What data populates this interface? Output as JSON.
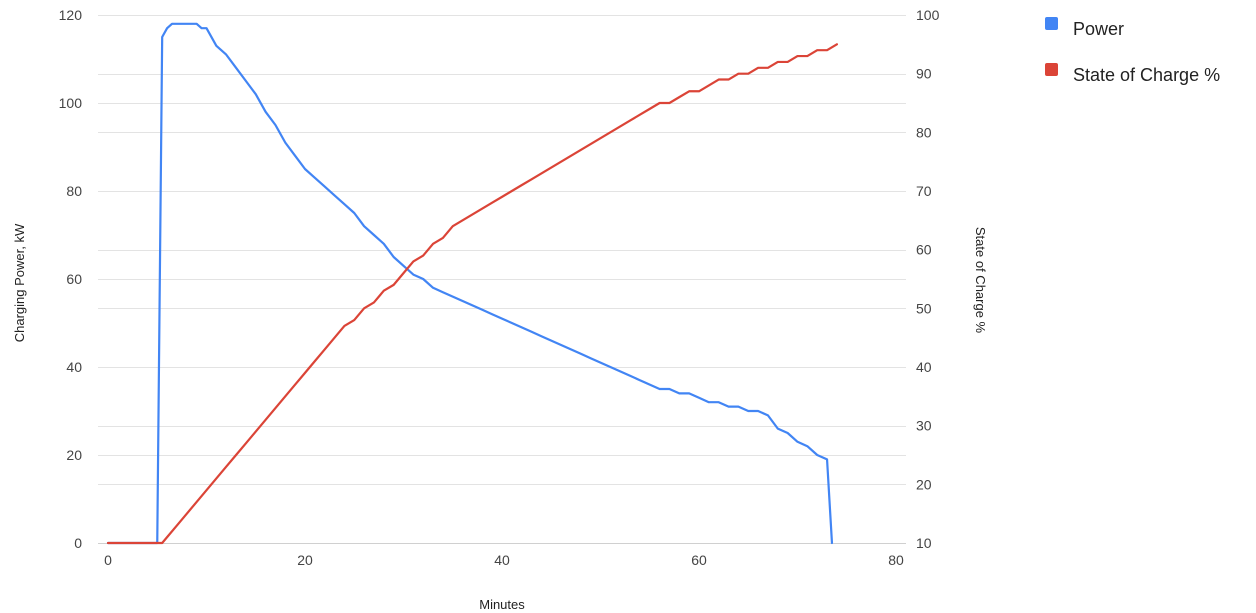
{
  "chart_data": {
    "type": "line",
    "title": "",
    "xlabel": "Minutes",
    "ylabel_left": "Charging Power, kW",
    "ylabel_right": "State of Charge %",
    "xlim": [
      0,
      80
    ],
    "ylim_left": [
      0,
      120
    ],
    "ylim_right": [
      10,
      100
    ],
    "x_ticks": [
      "0",
      "20",
      "40",
      "60",
      "80"
    ],
    "y_ticks_left": [
      "0",
      "20",
      "40",
      "60",
      "80",
      "100",
      "120"
    ],
    "y_ticks_right": [
      "10",
      "20",
      "30",
      "40",
      "50",
      "60",
      "70",
      "80",
      "90",
      "100"
    ],
    "grid": true,
    "legend_position": "right",
    "series": [
      {
        "name": "Power",
        "axis": "left",
        "color": "#4285f4",
        "points": [
          [
            0,
            0
          ],
          [
            5,
            0
          ],
          [
            5.5,
            115
          ],
          [
            6,
            117
          ],
          [
            6.5,
            118
          ],
          [
            8,
            118
          ],
          [
            9,
            118
          ],
          [
            9.5,
            117
          ],
          [
            10,
            117
          ],
          [
            11,
            113
          ],
          [
            12,
            111
          ],
          [
            13,
            108
          ],
          [
            14,
            105
          ],
          [
            15,
            102
          ],
          [
            16,
            98
          ],
          [
            17,
            95
          ],
          [
            18,
            91
          ],
          [
            19,
            88
          ],
          [
            20,
            85
          ],
          [
            21,
            83
          ],
          [
            22,
            81
          ],
          [
            23,
            79
          ],
          [
            24,
            77
          ],
          [
            25,
            75
          ],
          [
            26,
            72
          ],
          [
            27,
            70
          ],
          [
            28,
            68
          ],
          [
            29,
            65
          ],
          [
            30,
            63
          ],
          [
            31,
            61
          ],
          [
            32,
            60
          ],
          [
            33,
            58
          ],
          [
            34,
            57
          ],
          [
            35,
            56
          ],
          [
            36,
            55
          ],
          [
            37,
            54
          ],
          [
            38,
            53
          ],
          [
            39,
            52
          ],
          [
            40,
            51
          ],
          [
            41,
            50
          ],
          [
            42,
            49
          ],
          [
            43,
            48
          ],
          [
            44,
            47
          ],
          [
            45,
            46
          ],
          [
            46,
            45
          ],
          [
            47,
            44
          ],
          [
            48,
            43
          ],
          [
            49,
            42
          ],
          [
            50,
            41
          ],
          [
            51,
            40
          ],
          [
            52,
            39
          ],
          [
            53,
            38
          ],
          [
            54,
            37
          ],
          [
            55,
            36
          ],
          [
            56,
            35
          ],
          [
            57,
            35
          ],
          [
            58,
            34
          ],
          [
            59,
            34
          ],
          [
            60,
            33
          ],
          [
            61,
            32
          ],
          [
            62,
            32
          ],
          [
            63,
            31
          ],
          [
            64,
            31
          ],
          [
            65,
            30
          ],
          [
            66,
            30
          ],
          [
            67,
            29
          ],
          [
            68,
            26
          ],
          [
            69,
            25
          ],
          [
            70,
            23
          ],
          [
            71,
            22
          ],
          [
            72,
            20
          ],
          [
            73,
            19
          ],
          [
            73.5,
            0
          ]
        ]
      },
      {
        "name": "State of Charge %",
        "axis": "right",
        "color": "#db4437",
        "points": [
          [
            0,
            10
          ],
          [
            5.5,
            10
          ],
          [
            6,
            11
          ],
          [
            7,
            13
          ],
          [
            8,
            15
          ],
          [
            9,
            17
          ],
          [
            10,
            19
          ],
          [
            11,
            21
          ],
          [
            12,
            23
          ],
          [
            13,
            25
          ],
          [
            14,
            27
          ],
          [
            15,
            29
          ],
          [
            16,
            31
          ],
          [
            17,
            33
          ],
          [
            18,
            35
          ],
          [
            19,
            37
          ],
          [
            20,
            39
          ],
          [
            21,
            41
          ],
          [
            22,
            43
          ],
          [
            23,
            45
          ],
          [
            24,
            47
          ],
          [
            25,
            48
          ],
          [
            26,
            50
          ],
          [
            27,
            51
          ],
          [
            28,
            53
          ],
          [
            29,
            54
          ],
          [
            30,
            56
          ],
          [
            31,
            58
          ],
          [
            32,
            59
          ],
          [
            33,
            61
          ],
          [
            34,
            62
          ],
          [
            35,
            64
          ],
          [
            36,
            65
          ],
          [
            37,
            66
          ],
          [
            38,
            67
          ],
          [
            39,
            68
          ],
          [
            40,
            69
          ],
          [
            41,
            70
          ],
          [
            42,
            71
          ],
          [
            43,
            72
          ],
          [
            44,
            73
          ],
          [
            45,
            74
          ],
          [
            46,
            75
          ],
          [
            47,
            76
          ],
          [
            48,
            77
          ],
          [
            49,
            78
          ],
          [
            50,
            79
          ],
          [
            51,
            80
          ],
          [
            52,
            81
          ],
          [
            53,
            82
          ],
          [
            54,
            83
          ],
          [
            55,
            84
          ],
          [
            56,
            85
          ],
          [
            57,
            85
          ],
          [
            58,
            86
          ],
          [
            59,
            87
          ],
          [
            60,
            87
          ],
          [
            61,
            88
          ],
          [
            62,
            89
          ],
          [
            63,
            89
          ],
          [
            64,
            90
          ],
          [
            65,
            90
          ],
          [
            66,
            91
          ],
          [
            67,
            91
          ],
          [
            68,
            92
          ],
          [
            69,
            92
          ],
          [
            70,
            93
          ],
          [
            71,
            93
          ],
          [
            72,
            94
          ],
          [
            73,
            94
          ],
          [
            74,
            95
          ]
        ]
      }
    ]
  }
}
